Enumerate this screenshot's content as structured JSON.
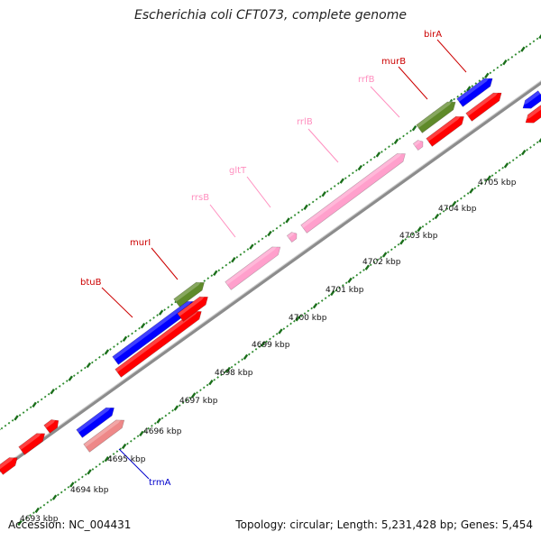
{
  "title": "Escherichia coli CFT073, complete genome",
  "footer": {
    "accession": "Accession: NC_004431",
    "summary": "Topology: circular; Length: 5,231,428 bp; Genes: 5,454"
  },
  "colors": {
    "background": "#ffffff",
    "backbone": "#8c8c8c",
    "ruler_dots": "#2e8b2e",
    "ruler_ticks": "#1a6e1a",
    "cds": "#ff0000",
    "gene": "#0000ff",
    "rrna": "#ffa0cc",
    "trna": "#ee8888",
    "misc": "#5f8a2a",
    "label_red": "#cc0000",
    "label_pink": "#ff8fbf",
    "label_blue": "#0000cc"
  },
  "ruler": {
    "unit": "kbp",
    "labels": [
      "4693 kbp",
      "4694 kbp",
      "4695 kbp",
      "4696 kbp",
      "4697 kbp",
      "4698 kbp",
      "4699 kbp",
      "4700 kbp",
      "4701 kbp",
      "4702 kbp",
      "4703 kbp",
      "4704 kbp",
      "4705 kbp"
    ]
  },
  "genes": [
    {
      "name": "btuB",
      "type": "cds"
    },
    {
      "name": "murI",
      "type": "cds"
    },
    {
      "name": "rrsB",
      "type": "rrna"
    },
    {
      "name": "gltT",
      "type": "rrna"
    },
    {
      "name": "rrlB",
      "type": "rrna"
    },
    {
      "name": "rrfB",
      "type": "rrna"
    },
    {
      "name": "murB",
      "type": "cds"
    },
    {
      "name": "birA",
      "type": "cds"
    },
    {
      "name": "trmA",
      "type": "gene"
    }
  ]
}
